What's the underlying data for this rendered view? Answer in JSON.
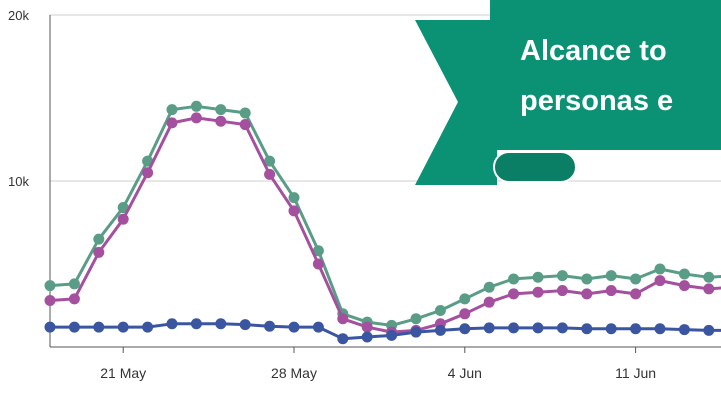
{
  "colors": {
    "green": "#5a9d87",
    "magenta": "#a5509f",
    "navy": "#3b56a0",
    "banner": "#0b9274",
    "banner_dark": "#0a7f65",
    "grid": "#cfcfcf",
    "axis": "#555555"
  },
  "banner": {
    "line1": "Alcance to",
    "line2": "personas e"
  },
  "chart_data": {
    "type": "line",
    "y_ticks": [
      {
        "value": 0,
        "label": ""
      },
      {
        "value": 10000,
        "label": "10k"
      },
      {
        "value": 20000,
        "label": "20k"
      }
    ],
    "x_ticks": [
      {
        "value": 3,
        "label": "21 May"
      },
      {
        "value": 10,
        "label": "28 May"
      },
      {
        "value": 17,
        "label": "4 Jun"
      },
      {
        "value": 24,
        "label": "11 Jun"
      }
    ],
    "ylim": [
      0,
      20000
    ],
    "xlim": [
      0,
      27.5
    ],
    "grid": true,
    "series": [
      {
        "color_key": "green",
        "x": [
          0,
          1,
          2,
          3,
          4,
          5,
          6,
          7,
          8,
          9,
          10,
          11,
          12,
          13,
          14,
          15,
          16,
          17,
          18,
          19,
          20,
          21,
          22,
          23,
          24,
          25,
          26,
          27,
          28
        ],
        "values": [
          3700,
          3800,
          6500,
          8400,
          11200,
          14300,
          14500,
          14300,
          14100,
          11200,
          9000,
          5800,
          2000,
          1500,
          1300,
          1700,
          2200,
          2900,
          3600,
          4100,
          4200,
          4300,
          4100,
          4300,
          4100,
          4700,
          4400,
          4200,
          4300
        ]
      },
      {
        "color_key": "magenta",
        "x": [
          0,
          1,
          2,
          3,
          4,
          5,
          6,
          7,
          8,
          9,
          10,
          11,
          12,
          13,
          14,
          15,
          16,
          17,
          18,
          19,
          20,
          21,
          22,
          23,
          24,
          25,
          26,
          27,
          28
        ],
        "values": [
          2800,
          2900,
          5700,
          7700,
          10500,
          13500,
          13800,
          13600,
          13400,
          10400,
          8200,
          5000,
          1700,
          1200,
          900,
          1000,
          1400,
          2000,
          2700,
          3200,
          3300,
          3400,
          3200,
          3400,
          3200,
          4000,
          3700,
          3500,
          3600
        ]
      },
      {
        "color_key": "navy",
        "x": [
          0,
          1,
          2,
          3,
          4,
          5,
          6,
          7,
          8,
          9,
          10,
          11,
          12,
          13,
          14,
          15,
          16,
          17,
          18,
          19,
          20,
          21,
          22,
          23,
          24,
          25,
          26,
          27,
          28
        ],
        "values": [
          1200,
          1200,
          1200,
          1200,
          1200,
          1400,
          1400,
          1400,
          1350,
          1250,
          1200,
          1200,
          500,
          600,
          700,
          900,
          1000,
          1100,
          1150,
          1150,
          1150,
          1150,
          1100,
          1100,
          1100,
          1100,
          1050,
          1000,
          1000
        ]
      }
    ]
  }
}
